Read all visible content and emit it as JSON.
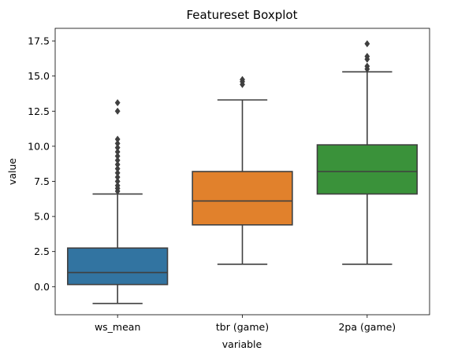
{
  "chart_data": {
    "type": "boxplot",
    "title": "Featureset Boxplot",
    "xlabel": "variable",
    "ylabel": "value",
    "ylim": [
      -2.0,
      18.4
    ],
    "yticks": [
      0.0,
      2.5,
      5.0,
      7.5,
      10.0,
      12.5,
      15.0,
      17.5
    ],
    "ytick_labels": [
      "0.0",
      "2.5",
      "5.0",
      "7.5",
      "10.0",
      "12.5",
      "15.0",
      "17.5"
    ],
    "categories": [
      "ws_mean",
      "tbr (game)",
      "2pa (game)"
    ],
    "boxes": [
      {
        "name": "ws_mean",
        "color": "#3274a1",
        "whisker_low": -1.2,
        "q1": 0.15,
        "median": 1.0,
        "q3": 2.75,
        "whisker_high": 6.6,
        "outliers": [
          6.8,
          7.0,
          7.2,
          7.5,
          7.8,
          8.1,
          8.4,
          8.7,
          9.0,
          9.3,
          9.6,
          9.9,
          10.2,
          10.5,
          12.5,
          13.1
        ]
      },
      {
        "name": "tbr (game)",
        "color": "#e1812c",
        "whisker_low": 1.6,
        "q1": 4.4,
        "median": 6.1,
        "q3": 8.2,
        "whisker_high": 13.3,
        "outliers": [
          14.4,
          14.6,
          14.75
        ]
      },
      {
        "name": "2pa (game)",
        "color": "#3a923a",
        "whisker_low": 1.6,
        "q1": 6.6,
        "median": 8.2,
        "q3": 10.1,
        "whisker_high": 15.3,
        "outliers": [
          15.5,
          15.7,
          16.2,
          16.4,
          17.3
        ]
      }
    ]
  }
}
